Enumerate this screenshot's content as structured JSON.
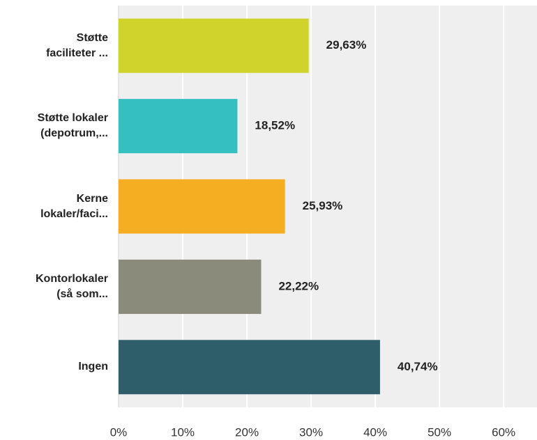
{
  "chart_data": {
    "type": "bar",
    "orientation": "horizontal",
    "categories": [
      "Støtte\nfaciliteter ...",
      "Støtte lokaler\n(depotrum,...",
      "Kerne\nlokaler/faci...",
      "Kontorlokaler\n(så som...",
      "Ingen"
    ],
    "values": [
      29.63,
      18.52,
      25.93,
      22.22,
      40.74
    ],
    "value_labels": [
      "29,63%",
      "18,52%",
      "25,93%",
      "22,22%",
      "40,74%"
    ],
    "colors": [
      "#d0d32b",
      "#35bfc1",
      "#f5ae21",
      "#8a8b7a",
      "#2f5e6b"
    ],
    "xlim": [
      0,
      65.2
    ],
    "xticks": [
      {
        "value": 0,
        "label": "0%"
      },
      {
        "value": 10,
        "label": "10%"
      },
      {
        "value": 20,
        "label": "20%"
      },
      {
        "value": 30,
        "label": "30%"
      },
      {
        "value": 40,
        "label": "40%"
      },
      {
        "value": 50,
        "label": "50%"
      },
      {
        "value": 60,
        "label": "60%"
      }
    ],
    "grid": true
  }
}
